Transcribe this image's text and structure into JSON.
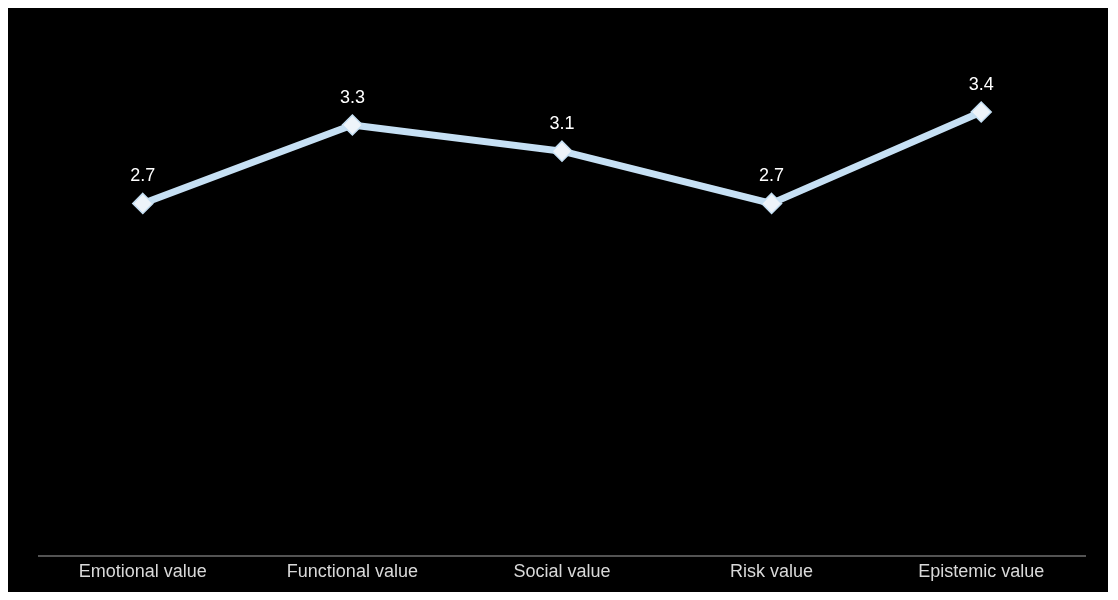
{
  "chart_data": {
    "type": "line",
    "categories": [
      "Emotional value",
      "Functional value",
      "Social value",
      "Risk value",
      "Epistemic value"
    ],
    "series": [
      {
        "color": "#c6e0f4",
        "values": [
          2.7,
          3.3,
          3.1,
          2.7,
          3.4
        ]
      }
    ],
    "tick_labels": "x",
    "data_labels": true,
    "marker": "diamond",
    "line_style": "solid"
  }
}
